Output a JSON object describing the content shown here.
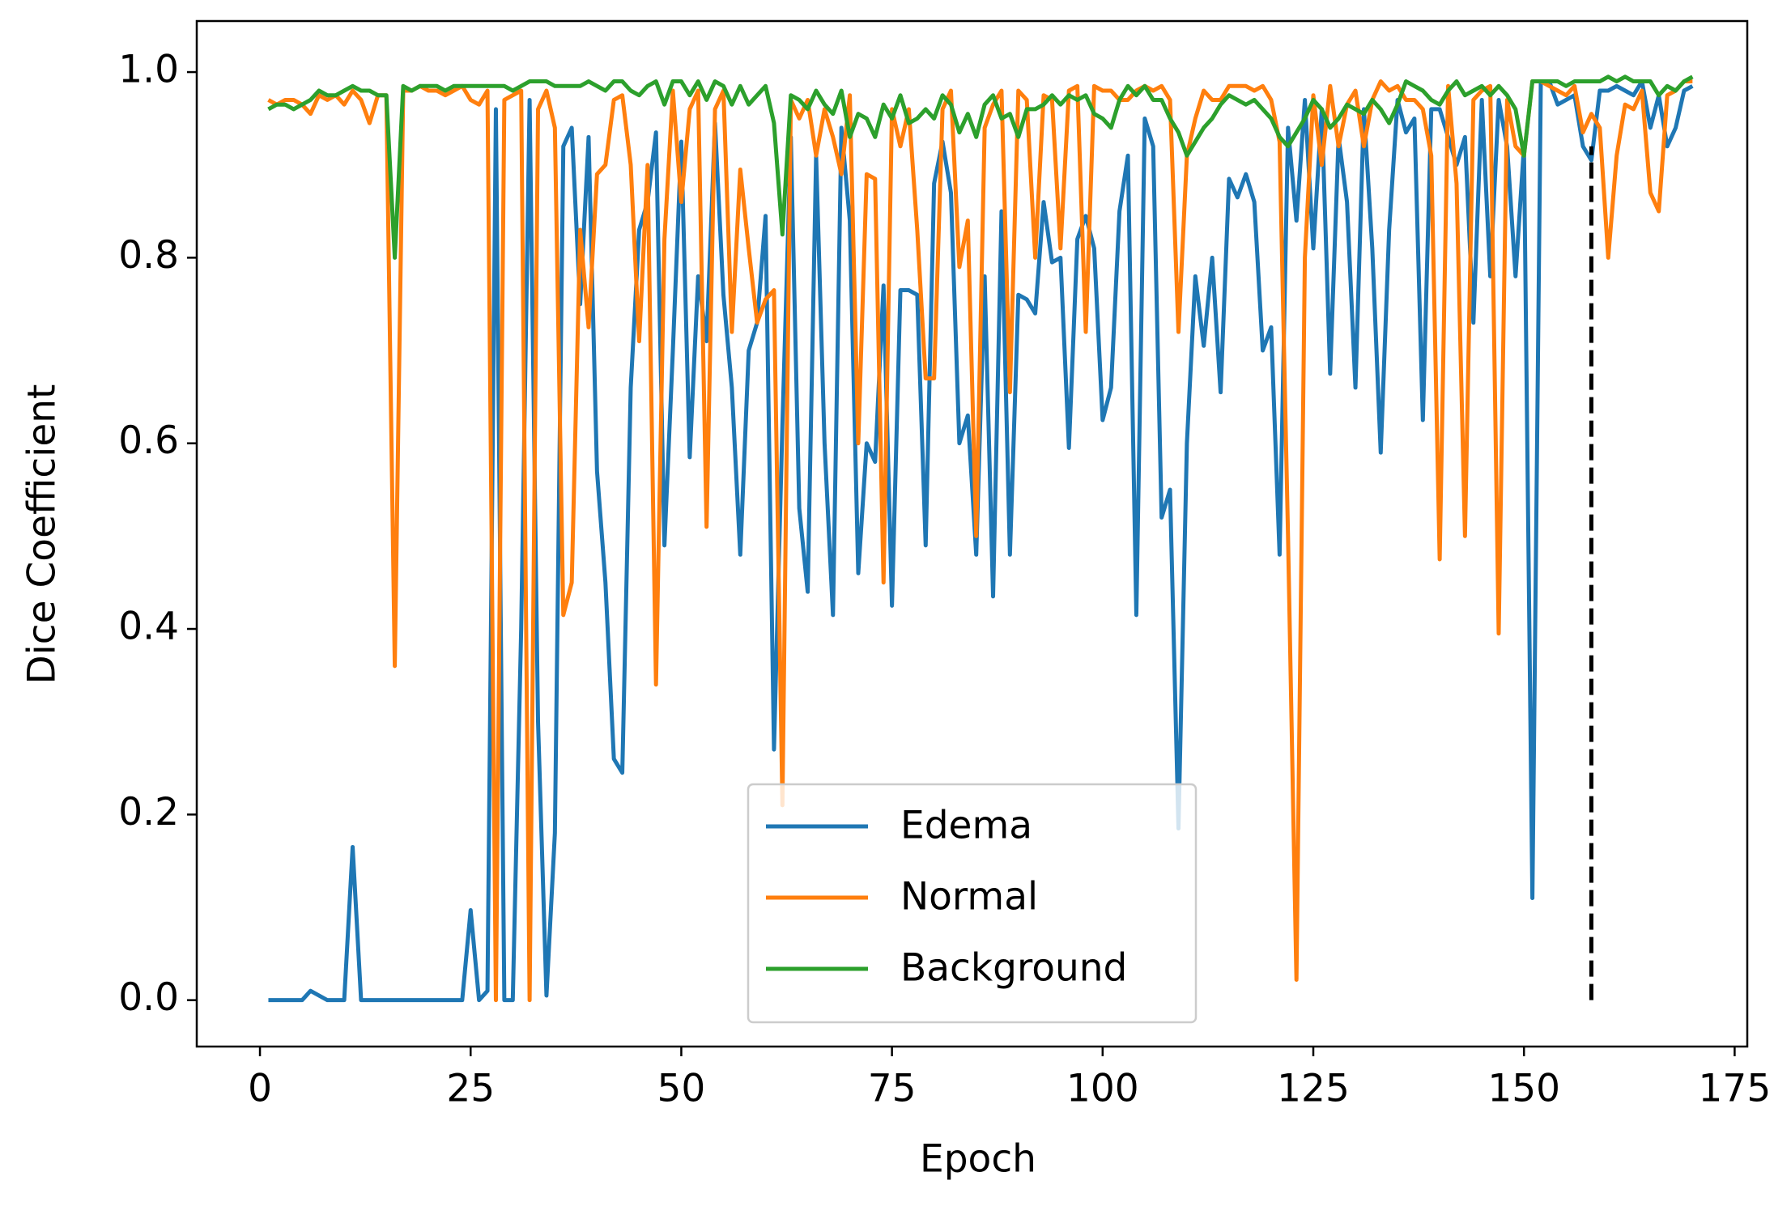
{
  "chart_data": {
    "type": "line",
    "xlabel": "Epoch",
    "ylabel": "Dice  Coefficient",
    "x": [
      1,
      2,
      3,
      4,
      5,
      6,
      7,
      8,
      9,
      10,
      11,
      12,
      13,
      14,
      15,
      16,
      17,
      18,
      19,
      20,
      21,
      22,
      23,
      24,
      25,
      26,
      27,
      28,
      29,
      30,
      31,
      32,
      33,
      34,
      35,
      36,
      37,
      38,
      39,
      40,
      41,
      42,
      43,
      44,
      45,
      46,
      47,
      48,
      49,
      50,
      51,
      52,
      53,
      54,
      55,
      56,
      57,
      58,
      59,
      60,
      61,
      62,
      63,
      64,
      65,
      66,
      67,
      68,
      69,
      70,
      71,
      72,
      73,
      74,
      75,
      76,
      77,
      78,
      79,
      80,
      81,
      82,
      83,
      84,
      85,
      86,
      87,
      88,
      89,
      90,
      91,
      92,
      93,
      94,
      95,
      96,
      97,
      98,
      99,
      100,
      101,
      102,
      103,
      104,
      105,
      106,
      107,
      108,
      109,
      110,
      111,
      112,
      113,
      114,
      115,
      116,
      117,
      118,
      119,
      120,
      121,
      122,
      123,
      124,
      125,
      126,
      127,
      128,
      129,
      130,
      131,
      132,
      133,
      134,
      135,
      136,
      137,
      138,
      139,
      140,
      141,
      142,
      143,
      144,
      145,
      146,
      147,
      148,
      149,
      150,
      151,
      152,
      153,
      154,
      155,
      156,
      157,
      158,
      159,
      160,
      161,
      162,
      163,
      164,
      165,
      166,
      167,
      168,
      169,
      170
    ],
    "series": [
      {
        "name": "Edema",
        "color": "#1f77b4",
        "values": [
          0,
          0,
          0,
          0,
          0,
          0.01,
          0.005,
          0,
          0,
          0,
          0.165,
          0,
          0,
          0,
          0,
          0,
          0,
          0,
          0,
          0,
          0,
          0,
          0,
          0,
          0.097,
          0,
          0.01,
          0.96,
          0,
          0,
          0.4,
          0.97,
          0.3,
          0.005,
          0.18,
          0.92,
          0.94,
          0.75,
          0.93,
          0.57,
          0.45,
          0.26,
          0.245,
          0.66,
          0.83,
          0.86,
          0.935,
          0.49,
          0.7,
          0.925,
          0.585,
          0.78,
          0.71,
          0.945,
          0.76,
          0.66,
          0.48,
          0.7,
          0.73,
          0.845,
          0.27,
          0.62,
          0.93,
          0.53,
          0.44,
          0.91,
          0.6,
          0.415,
          0.94,
          0.84,
          0.46,
          0.6,
          0.58,
          0.77,
          0.425,
          0.765,
          0.765,
          0.76,
          0.49,
          0.88,
          0.925,
          0.87,
          0.6,
          0.63,
          0.48,
          0.78,
          0.435,
          0.85,
          0.48,
          0.76,
          0.755,
          0.74,
          0.86,
          0.795,
          0.8,
          0.595,
          0.82,
          0.845,
          0.81,
          0.625,
          0.66,
          0.85,
          0.91,
          0.415,
          0.95,
          0.92,
          0.52,
          0.55,
          0.185,
          0.6,
          0.78,
          0.705,
          0.8,
          0.655,
          0.885,
          0.865,
          0.89,
          0.86,
          0.7,
          0.725,
          0.48,
          0.94,
          0.84,
          0.97,
          0.81,
          0.96,
          0.675,
          0.93,
          0.86,
          0.66,
          0.96,
          0.81,
          0.59,
          0.83,
          0.97,
          0.935,
          0.95,
          0.625,
          0.96,
          0.96,
          0.93,
          0.9,
          0.93,
          0.73,
          0.97,
          0.78,
          0.97,
          0.92,
          0.78,
          0.92,
          0.11,
          0.99,
          0.99,
          0.965,
          0.97,
          0.975,
          0.92,
          0.905,
          0.98,
          0.98,
          0.985,
          0.98,
          0.975,
          0.99,
          0.94,
          0.975,
          0.92,
          0.94,
          0.98,
          0.985
        ]
      },
      {
        "name": "Normal",
        "color": "#ff7f0e",
        "values": [
          0.97,
          0.965,
          0.97,
          0.97,
          0.965,
          0.955,
          0.975,
          0.97,
          0.975,
          0.965,
          0.98,
          0.97,
          0.945,
          0.975,
          0.975,
          0.36,
          0.98,
          0.98,
          0.985,
          0.98,
          0.98,
          0.975,
          0.98,
          0.985,
          0.97,
          0.965,
          0.98,
          0,
          0.97,
          0.975,
          0.98,
          0,
          0.96,
          0.98,
          0.94,
          0.415,
          0.45,
          0.83,
          0.725,
          0.89,
          0.9,
          0.97,
          0.975,
          0.9,
          0.71,
          0.9,
          0.34,
          0.82,
          0.98,
          0.86,
          0.96,
          0.98,
          0.51,
          0.96,
          0.98,
          0.72,
          0.895,
          0.81,
          0.73,
          0.755,
          0.765,
          0.21,
          0.97,
          0.95,
          0.97,
          0.91,
          0.96,
          0.93,
          0.89,
          0.975,
          0.6,
          0.89,
          0.885,
          0.45,
          0.96,
          0.92,
          0.96,
          0.83,
          0.67,
          0.67,
          0.96,
          0.98,
          0.79,
          0.84,
          0.5,
          0.94,
          0.965,
          0.98,
          0.655,
          0.98,
          0.97,
          0.8,
          0.975,
          0.97,
          0.81,
          0.98,
          0.985,
          0.72,
          0.985,
          0.98,
          0.98,
          0.97,
          0.97,
          0.98,
          0.985,
          0.98,
          0.985,
          0.97,
          0.72,
          0.91,
          0.95,
          0.98,
          0.97,
          0.97,
          0.985,
          0.985,
          0.985,
          0.98,
          0.985,
          0.97,
          0.925,
          0.5,
          0.022,
          0.8,
          0.975,
          0.9,
          0.985,
          0.92,
          0.965,
          0.98,
          0.92,
          0.97,
          0.99,
          0.98,
          0.985,
          0.97,
          0.97,
          0.96,
          0.91,
          0.475,
          0.985,
          0.88,
          0.5,
          0.97,
          0.98,
          0.985,
          0.395,
          0.97,
          0.92,
          0.91,
          0.99,
          0.99,
          0.985,
          0.98,
          0.975,
          0.985,
          0.935,
          0.955,
          0.94,
          0.8,
          0.91,
          0.965,
          0.96,
          0.98,
          0.87,
          0.85,
          0.975,
          0.98,
          0.99,
          0.99
        ]
      },
      {
        "name": "Background",
        "color": "#2ca02c",
        "values": [
          0.96,
          0.965,
          0.965,
          0.96,
          0.965,
          0.97,
          0.98,
          0.975,
          0.975,
          0.98,
          0.985,
          0.98,
          0.98,
          0.975,
          0.975,
          0.8,
          0.985,
          0.98,
          0.985,
          0.985,
          0.985,
          0.98,
          0.985,
          0.985,
          0.985,
          0.985,
          0.985,
          0.985,
          0.985,
          0.98,
          0.985,
          0.99,
          0.99,
          0.99,
          0.985,
          0.985,
          0.985,
          0.985,
          0.99,
          0.985,
          0.98,
          0.99,
          0.99,
          0.98,
          0.975,
          0.985,
          0.99,
          0.965,
          0.99,
          0.99,
          0.975,
          0.99,
          0.97,
          0.99,
          0.985,
          0.965,
          0.985,
          0.965,
          0.975,
          0.985,
          0.945,
          0.825,
          0.975,
          0.97,
          0.96,
          0.98,
          0.965,
          0.955,
          0.98,
          0.93,
          0.955,
          0.95,
          0.93,
          0.965,
          0.95,
          0.975,
          0.945,
          0.95,
          0.96,
          0.95,
          0.975,
          0.965,
          0.935,
          0.955,
          0.93,
          0.965,
          0.975,
          0.95,
          0.955,
          0.93,
          0.96,
          0.96,
          0.965,
          0.975,
          0.965,
          0.975,
          0.97,
          0.975,
          0.955,
          0.95,
          0.94,
          0.97,
          0.985,
          0.975,
          0.985,
          0.97,
          0.97,
          0.95,
          0.935,
          0.91,
          0.925,
          0.94,
          0.95,
          0.965,
          0.975,
          0.97,
          0.965,
          0.97,
          0.96,
          0.95,
          0.93,
          0.92,
          0.935,
          0.95,
          0.97,
          0.96,
          0.94,
          0.95,
          0.965,
          0.96,
          0.955,
          0.97,
          0.96,
          0.945,
          0.965,
          0.99,
          0.985,
          0.98,
          0.97,
          0.965,
          0.98,
          0.99,
          0.975,
          0.98,
          0.985,
          0.975,
          0.985,
          0.975,
          0.96,
          0.91,
          0.99,
          0.99,
          0.99,
          0.99,
          0.985,
          0.99,
          0.99,
          0.99,
          0.99,
          0.995,
          0.99,
          0.995,
          0.99,
          0.99,
          0.99,
          0.975,
          0.985,
          0.98,
          0.99,
          0.995
        ]
      }
    ],
    "vline": {
      "x": 158,
      "ymin": 0,
      "ymax": 0.92,
      "color": "#000000"
    },
    "xlim": [
      -7.5,
      176.5
    ],
    "ylim": [
      -0.05,
      1.055
    ],
    "xticks": [
      0,
      25,
      50,
      75,
      100,
      125,
      150,
      175
    ],
    "yticks": [
      {
        "value": 0,
        "label": "0.0"
      },
      {
        "value": 0.2,
        "label": "0.2"
      },
      {
        "value": 0.4,
        "label": "0.4"
      },
      {
        "value": 0.6,
        "label": "0.6"
      },
      {
        "value": 0.8,
        "label": "0.8"
      },
      {
        "value": 1,
        "label": "1.0"
      }
    ],
    "grid": false,
    "legend": "lower center"
  }
}
